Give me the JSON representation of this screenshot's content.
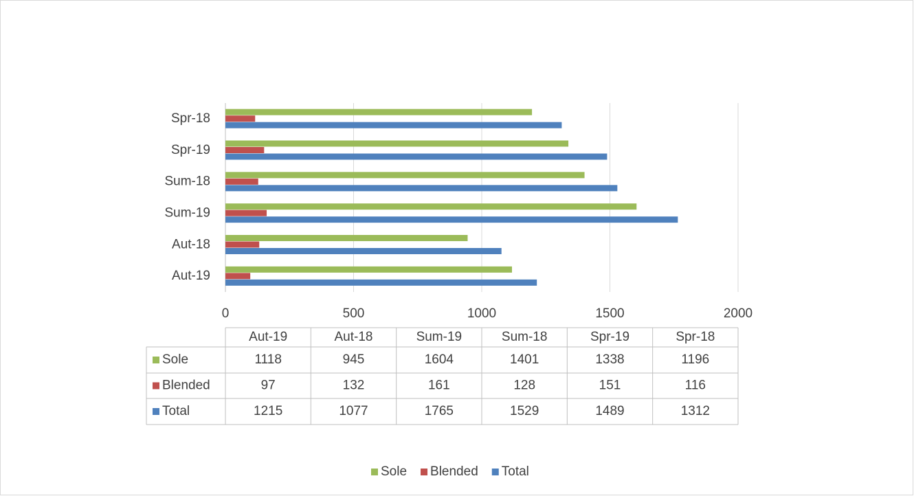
{
  "chart_data": {
    "type": "bar",
    "categories": [
      "Aut-19",
      "Aut-18",
      "Sum-19",
      "Sum-18",
      "Spr-19",
      "Spr-18"
    ],
    "series": [
      {
        "name": "Sole",
        "color": "#9bbb59",
        "values": [
          1118,
          945,
          1604,
          1401,
          1338,
          1196
        ]
      },
      {
        "name": "Blended",
        "color": "#c0504d",
        "values": [
          97,
          132,
          161,
          128,
          151,
          116
        ]
      },
      {
        "name": "Total",
        "color": "#4f81bd",
        "values": [
          1215,
          1077,
          1765,
          1529,
          1489,
          1312
        ]
      }
    ],
    "xlim": [
      0,
      2000
    ],
    "xticks": [
      0,
      500,
      1000,
      1500,
      2000
    ],
    "grid": true,
    "legend": "bottom"
  }
}
